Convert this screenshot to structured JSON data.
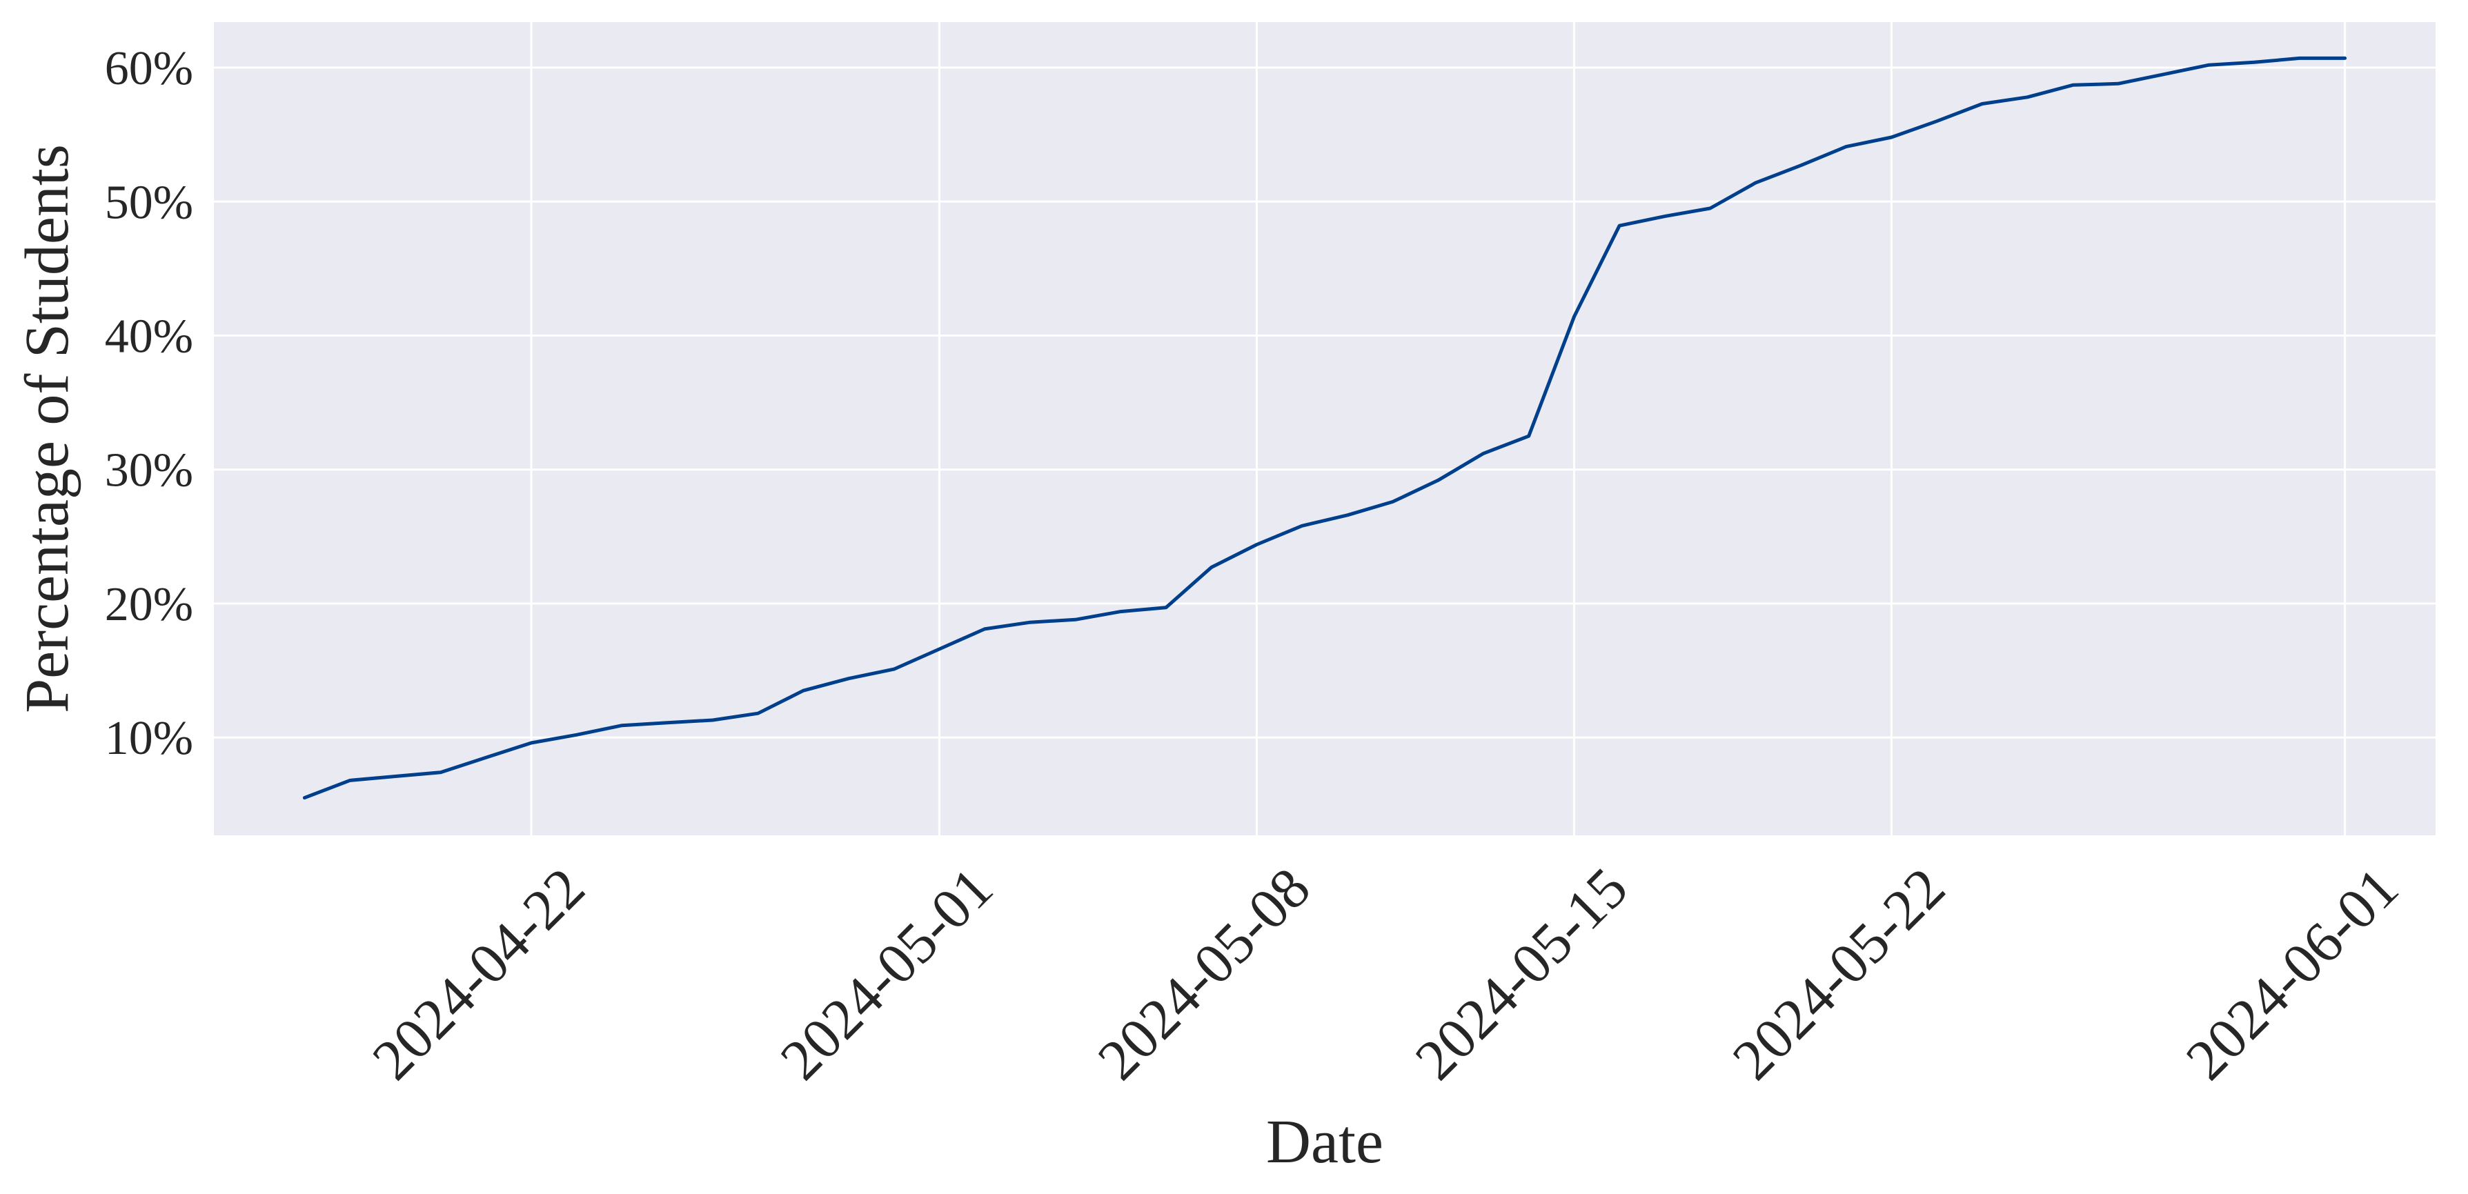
{
  "chart_data": {
    "type": "line",
    "title": "",
    "xlabel": "Date",
    "ylabel": "Percentage of Students",
    "x_tick_labels": [
      "2024-04-22",
      "2024-05-01",
      "2024-05-08",
      "2024-05-15",
      "2024-05-22",
      "2024-06-01"
    ],
    "y_tick_labels": [
      "10%",
      "20%",
      "30%",
      "40%",
      "50%",
      "60%"
    ],
    "y_ticks": [
      10,
      20,
      30,
      40,
      50,
      60
    ],
    "xlim": [
      "2024-04-15",
      "2024-06-03"
    ],
    "ylim": [
      2.7,
      63.4
    ],
    "grid": true,
    "legend": "none",
    "colors": {
      "background": "#EAEAF2",
      "grid": "#FFFFFF",
      "line": "#003F8C",
      "text": "#262626"
    },
    "series": [
      {
        "x": [
          "2024-04-17",
          "2024-04-18",
          "2024-04-19",
          "2024-04-20",
          "2024-04-21",
          "2024-04-22",
          "2024-04-23",
          "2024-04-24",
          "2024-04-25",
          "2024-04-26",
          "2024-04-27",
          "2024-04-28",
          "2024-04-29",
          "2024-04-30",
          "2024-05-01",
          "2024-05-02",
          "2024-05-03",
          "2024-05-04",
          "2024-05-05",
          "2024-05-06",
          "2024-05-07",
          "2024-05-08",
          "2024-05-09",
          "2024-05-10",
          "2024-05-11",
          "2024-05-12",
          "2024-05-13",
          "2024-05-14",
          "2024-05-15",
          "2024-05-16",
          "2024-05-17",
          "2024-05-18",
          "2024-05-19",
          "2024-05-20",
          "2024-05-21",
          "2024-05-22",
          "2024-05-23",
          "2024-05-24",
          "2024-05-25",
          "2024-05-26",
          "2024-05-27",
          "2024-05-28",
          "2024-05-29",
          "2024-05-30",
          "2024-05-31",
          "2024-06-01"
        ],
        "y": [
          5.5,
          6.8,
          7.1,
          7.4,
          8.5,
          9.6,
          10.2,
          10.9,
          11.1,
          11.3,
          11.8,
          13.5,
          14.4,
          15.1,
          16.6,
          18.1,
          18.6,
          18.8,
          19.4,
          19.7,
          22.7,
          24.4,
          25.8,
          26.6,
          27.6,
          29.2,
          31.2,
          32.5,
          41.4,
          48.2,
          48.9,
          49.5,
          51.4,
          52.7,
          54.1,
          54.8,
          56.0,
          57.3,
          57.8,
          58.7,
          58.8,
          59.5,
          60.2,
          60.4,
          60.7,
          60.7
        ]
      }
    ]
  }
}
